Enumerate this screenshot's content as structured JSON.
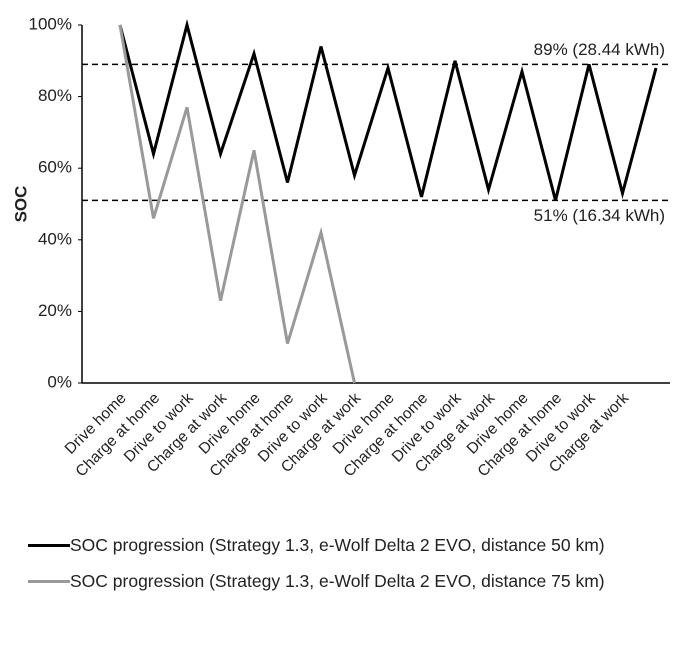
{
  "chart_data": {
    "type": "line",
    "y_label": "SOC",
    "categories": [
      "Drive home",
      "Charge at home",
      "Drive to work",
      "Charge at work",
      "Drive home",
      "Charge at home",
      "Drive to work",
      "Charge at work",
      "Drive home",
      "Charge at home",
      "Drive to work",
      "Charge at work",
      "Drive home",
      "Charge at home",
      "Drive to work",
      "Charge at work",
      null
    ],
    "series": [
      {
        "name": "SOC progression (Strategy 1.3, e-Wolf Delta 2 EVO, distance 50 km)",
        "color": "#000000",
        "values": [
          100,
          64,
          100,
          64,
          92,
          56,
          94,
          58,
          88,
          52,
          90,
          54,
          87,
          51,
          89,
          53,
          88
        ]
      },
      {
        "name": "SOC progression (Strategy 1.3, e-Wolf Delta 2 EVO, distance 75 km)",
        "color": "#999999",
        "values": [
          100,
          46,
          77,
          23,
          65,
          11,
          42,
          0,
          null,
          null,
          null,
          null,
          null,
          null,
          null,
          null,
          null
        ]
      }
    ],
    "ylim": [
      0,
      100
    ],
    "yticks": [
      {
        "value": 0,
        "label": "0%"
      },
      {
        "value": 20,
        "label": "20%"
      },
      {
        "value": 40,
        "label": "40%"
      },
      {
        "value": 60,
        "label": "60%"
      },
      {
        "value": 80,
        "label": "80%"
      },
      {
        "value": 100,
        "label": "100%"
      }
    ],
    "reference_lines": [
      {
        "value": 89,
        "label": "89% (28.44 kWh)"
      },
      {
        "value": 51,
        "label": "51% (16.34 kWh)"
      }
    ],
    "legend": "bottom"
  }
}
